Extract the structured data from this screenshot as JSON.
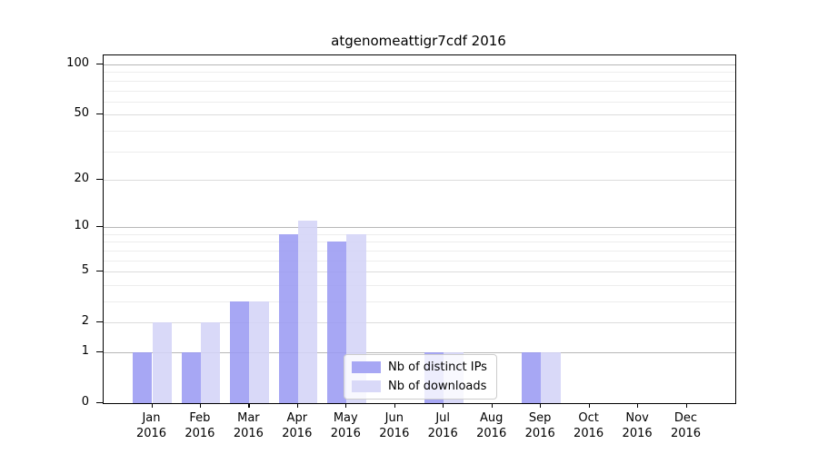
{
  "chart_data": {
    "type": "bar",
    "title": "atgenomeattigr7cdf 2016",
    "categories": [
      "Jan",
      "Feb",
      "Mar",
      "Apr",
      "May",
      "Jun",
      "Jul",
      "Aug",
      "Sep",
      "Oct",
      "Nov",
      "Dec"
    ],
    "year_label": "2016",
    "series": [
      {
        "name": "Nb of distinct IPs",
        "color": "#9b9bf3",
        "values": [
          1,
          1,
          3,
          9,
          8,
          0,
          1,
          0,
          1,
          0,
          0,
          0
        ]
      },
      {
        "name": "Nb of downloads",
        "color": "#d4d4f7",
        "values": [
          2,
          2,
          3,
          11,
          9,
          0,
          1,
          0,
          1,
          0,
          0,
          0
        ]
      }
    ],
    "y_axis": {
      "scale": "log(1+x)",
      "major_ticks": [
        0,
        1,
        2,
        5,
        10,
        20,
        50,
        100
      ],
      "minor_ticks": [
        3,
        4,
        6,
        7,
        8,
        9,
        30,
        40,
        60,
        70,
        80,
        90
      ],
      "ylim": [
        0,
        113
      ]
    },
    "xlabel": "",
    "ylabel": "",
    "grid": true,
    "legend_position": "inside-bottom-center"
  }
}
